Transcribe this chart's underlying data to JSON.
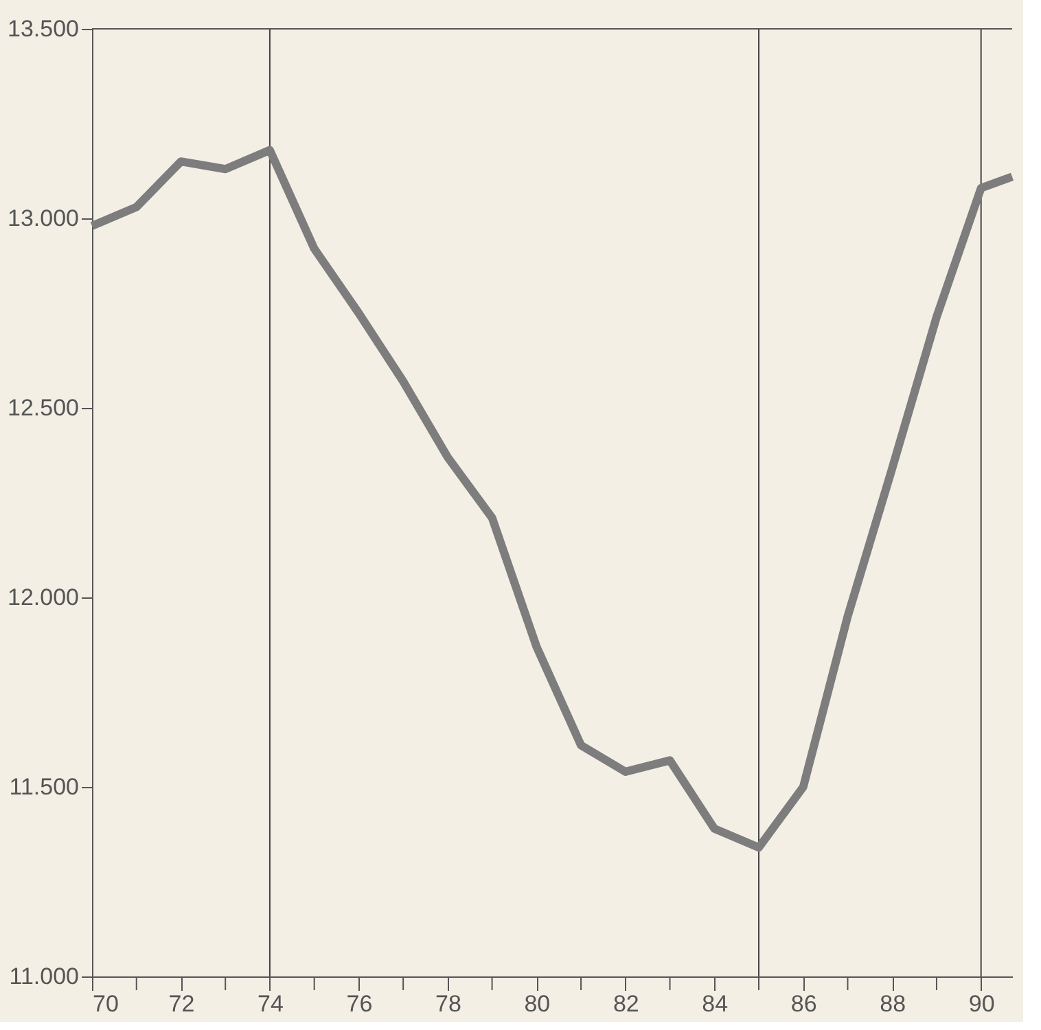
{
  "chart_data": {
    "type": "line",
    "x": [
      70,
      71,
      72,
      73,
      74,
      75,
      76,
      77,
      78,
      79,
      80,
      81,
      82,
      83,
      84,
      85,
      86,
      87,
      88,
      89,
      90,
      90.7
    ],
    "series": [
      {
        "color": "#7d7d7d",
        "values": [
          12980,
          13030,
          13150,
          13130,
          13180,
          12920,
          12750,
          12570,
          12370,
          12210,
          11870,
          11610,
          11540,
          11570,
          11390,
          11340,
          11500,
          11950,
          12340,
          12740,
          13080,
          13110
        ]
      }
    ],
    "xlim": [
      70,
      90.7
    ],
    "xticks": [
      70,
      {
        "value": 71,
        "label": null
      },
      72,
      {
        "value": 73,
        "label": null
      },
      74,
      {
        "value": 75,
        "label": null
      },
      76,
      {
        "value": 77,
        "label": null
      },
      78,
      {
        "value": 79,
        "label": null
      },
      80,
      {
        "value": 81,
        "label": null
      },
      82,
      {
        "value": 83,
        "label": null
      },
      84,
      {
        "value": 85,
        "label": null
      },
      86,
      {
        "value": 87,
        "label": null
      },
      88,
      {
        "value": 89,
        "label": null
      },
      90
    ],
    "ylim": [
      11000,
      13500
    ],
    "yticks": [
      {
        "value": 11000,
        "label": "11.000"
      },
      {
        "value": 11500,
        "label": "11.500"
      },
      {
        "value": 12000,
        "label": "12.000"
      },
      {
        "value": 12500,
        "label": "12.500"
      },
      {
        "value": 13000,
        "label": "13.000"
      },
      {
        "value": 13500,
        "label": "13.500"
      }
    ],
    "ref_lines": [
      {
        "axis": "x",
        "value": 74,
        "color": "#444444"
      },
      {
        "axis": "x",
        "value": 85,
        "color": "#444444"
      },
      {
        "axis": "x",
        "value": 90,
        "color": "#444444"
      }
    ],
    "grid": false,
    "marker": "none",
    "line_style": "solid"
  }
}
